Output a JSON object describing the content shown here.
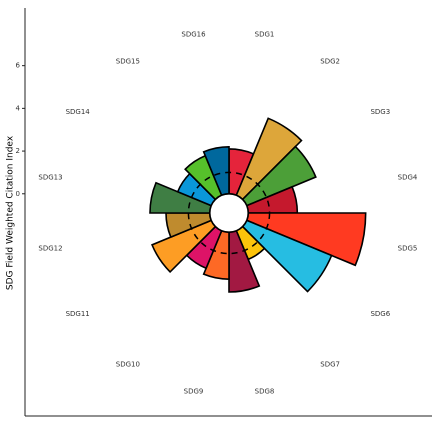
{
  "chart_data": {
    "type": "polar-bar",
    "y_label": "SDG Field Weighted Citation Index",
    "categories": [
      "SDG1",
      "SDG2",
      "SDG3",
      "SDG4",
      "SDG5",
      "SDG6",
      "SDG7",
      "SDG8",
      "SDG9",
      "SDG10",
      "SDG11",
      "SDG12",
      "SDG13",
      "SDG14",
      "SDG15",
      "SDG16"
    ],
    "values": [
      2.1,
      3.9,
      3.5,
      2.3,
      5.5,
      4.3,
      1.45,
      2.8,
      2.2,
      1.9,
      3.0,
      2.05,
      2.8,
      1.7,
      2.0,
      2.2
    ],
    "colors": [
      "#e5243b",
      "#dda63a",
      "#4c9f38",
      "#c5192d",
      "#ff3a21",
      "#26bde2",
      "#fcc30b",
      "#a21942",
      "#fd6925",
      "#dd1367",
      "#fd9d24",
      "#bf8b2e",
      "#3f7e44",
      "#0a97d9",
      "#56c02b",
      "#00689d"
    ],
    "ylim": [
      -0.9,
      8.7
    ],
    "yticks": [
      0,
      2,
      4,
      6
    ],
    "reference_line": 1
  }
}
